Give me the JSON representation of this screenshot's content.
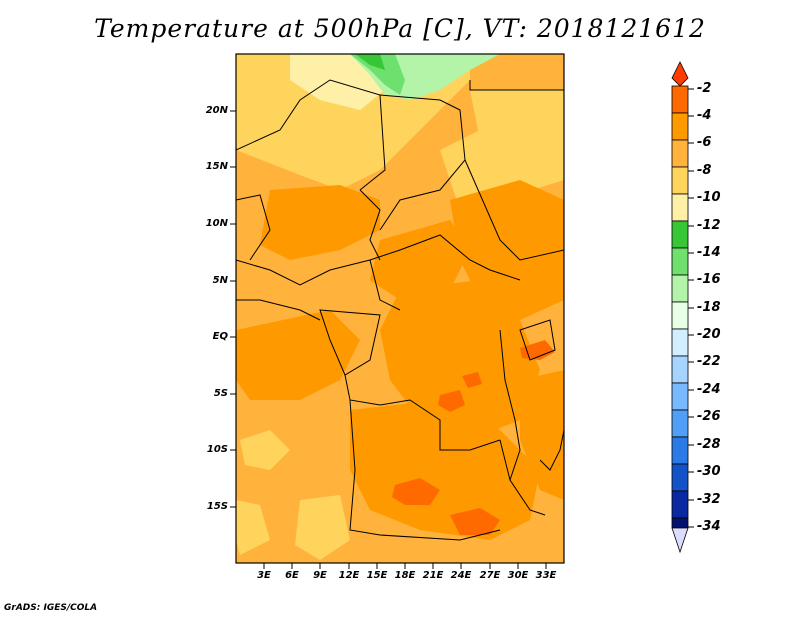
{
  "title": "Temperature at 500hPa [C], VT: 2018121612",
  "credit": "GrADS: IGES/COLA",
  "map": {
    "variable": "Temperature",
    "level": "500hPa",
    "units": "C",
    "valid_time": "2018121612",
    "lat_labels": [
      "20N",
      "15N",
      "10N",
      "5N",
      "EQ",
      "5S",
      "10S",
      "15S"
    ],
    "lon_labels": [
      "3E",
      "6E",
      "9E",
      "12E",
      "15E",
      "18E",
      "21E",
      "24E",
      "27E",
      "30E",
      "33E"
    ]
  },
  "colorbar": {
    "labels": [
      "-2",
      "-4",
      "-6",
      "-8",
      "-10",
      "-12",
      "-14",
      "-16",
      "-18",
      "-20",
      "-22",
      "-24",
      "-26",
      "-28",
      "-30",
      "-32",
      "-34"
    ],
    "colors": [
      "#ff3c00",
      "#ff6a00",
      "#ff9900",
      "#ffb23c",
      "#ffd45c",
      "#fff0a8",
      "#36c636",
      "#6ee06e",
      "#b4f4a8",
      "#e6ffe6",
      "#d2eeff",
      "#a6d4ff",
      "#78b9ff",
      "#509ef5",
      "#2a7be6",
      "#1452c8",
      "#0a28a0",
      "#00146e",
      "#dcdcff"
    ]
  }
}
